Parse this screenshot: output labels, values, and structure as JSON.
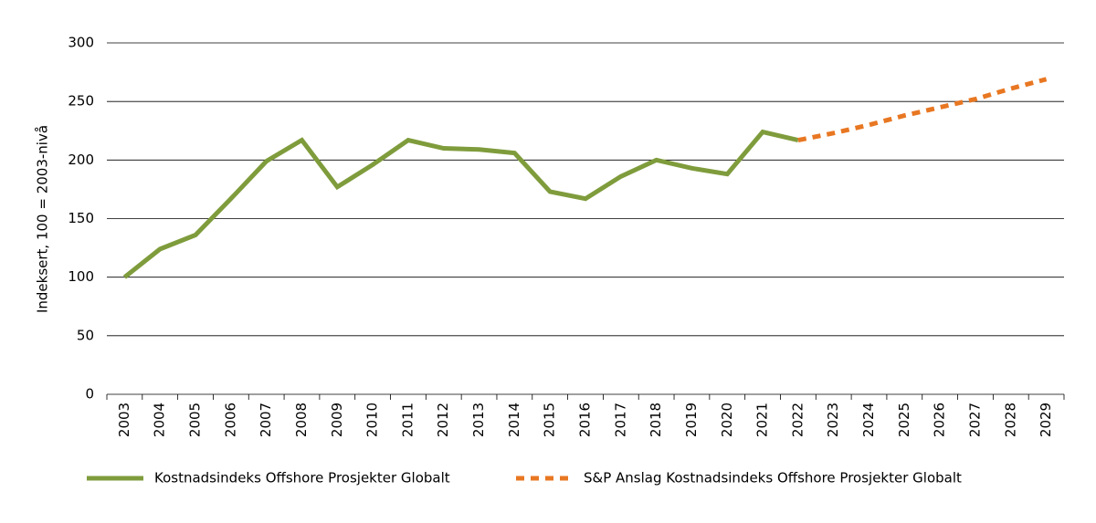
{
  "chart_data": {
    "type": "line",
    "y_label": "Indeksert, 100 = 2003-nivå",
    "categories": [
      "2003",
      "2004",
      "2005",
      "2006",
      "2007",
      "2008",
      "2009",
      "2010",
      "2011",
      "2012",
      "2013",
      "2014",
      "2015",
      "2016",
      "2017",
      "2018",
      "2019",
      "2020",
      "2021",
      "2022",
      "2023",
      "2024",
      "2025",
      "2026",
      "2027",
      "2028",
      "2029"
    ],
    "series": [
      {
        "name": "Kostnadsindeks Offshore Prosjekter Globalt",
        "color": "#7f9c3c",
        "dashed": false,
        "values": [
          100,
          124,
          136,
          167,
          199,
          217,
          177,
          196,
          217,
          210,
          209,
          206,
          173,
          167,
          186,
          200,
          193,
          188,
          224,
          217,
          null,
          null,
          null,
          null,
          null,
          null,
          null
        ]
      },
      {
        "name": "S&P Anslag Kostnadsindeks Offshore Prosjekter Globalt",
        "color": "#e87722",
        "dashed": true,
        "values": [
          null,
          null,
          null,
          null,
          null,
          null,
          null,
          null,
          null,
          null,
          null,
          null,
          null,
          null,
          null,
          null,
          null,
          null,
          null,
          217,
          223,
          230,
          238,
          245,
          252,
          261,
          269
        ]
      }
    ],
    "ylim": [
      0,
      300
    ],
    "yticks": [
      0,
      50,
      100,
      150,
      200,
      250,
      300
    ],
    "grid": true,
    "legend": "bottom"
  }
}
